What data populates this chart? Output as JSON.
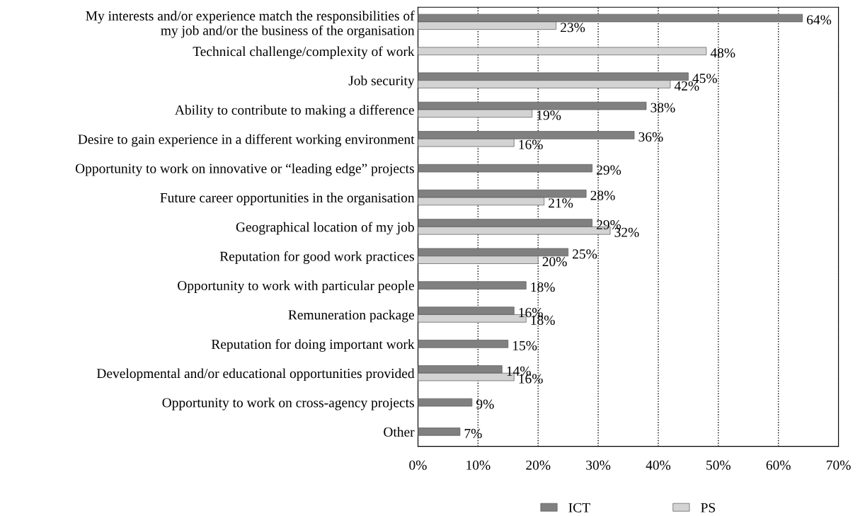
{
  "chart_data": {
    "type": "bar",
    "orientation": "horizontal",
    "categories": [
      "My interests and/or experience match the responsibilities of\nmy job and/or the business of the organisation",
      "Technical challenge/complexity of work",
      "Job security",
      "Ability to contribute to making a difference",
      "Desire to gain experience in a different working environment",
      "Opportunity to work on innovative or “leading edge” projects",
      "Future career opportunities in the organisation",
      "Geographical location of my job",
      "Reputation for good work practices",
      "Opportunity to work with particular people",
      "Remuneration package",
      "Reputation for doing important work",
      "Developmental and/or educational opportunities provided",
      "Opportunity to work on cross-agency projects",
      "Other"
    ],
    "series": [
      {
        "name": "ICT",
        "color": "#808080",
        "values": [
          64,
          null,
          45,
          38,
          36,
          29,
          28,
          29,
          25,
          18,
          16,
          15,
          14,
          9,
          7
        ],
        "value_labels": [
          "64%",
          null,
          "45%",
          "38%",
          "36%",
          "29%",
          "28%",
          "29%",
          "25%",
          "18%",
          "16%",
          "15%",
          "14%",
          "9%",
          "7%"
        ]
      },
      {
        "name": "PS",
        "color": "#d3d3d3",
        "values": [
          23,
          48,
          42,
          19,
          16,
          null,
          21,
          32,
          20,
          null,
          18,
          null,
          16,
          null,
          null
        ],
        "value_labels": [
          "23%",
          "48%",
          "42%",
          "19%",
          "16%",
          null,
          "21%",
          "32%",
          "20%",
          null,
          "18%",
          null,
          "16%",
          null,
          null
        ]
      }
    ],
    "xlim": [
      0,
      70
    ],
    "xticks": [
      {
        "value": 0,
        "label": "0%"
      },
      {
        "value": 10,
        "label": "10%"
      },
      {
        "value": 20,
        "label": "20%"
      },
      {
        "value": 30,
        "label": "30%"
      },
      {
        "value": 40,
        "label": "40%"
      },
      {
        "value": 50,
        "label": "50%"
      },
      {
        "value": 60,
        "label": "60%"
      },
      {
        "value": 70,
        "label": "70%"
      }
    ],
    "grid": "x",
    "legend": "bottom"
  }
}
